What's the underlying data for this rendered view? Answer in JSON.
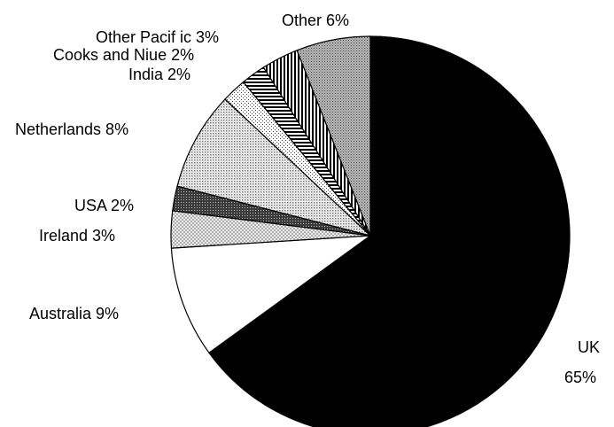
{
  "chart_data": {
    "type": "pie",
    "start": "12 o'clock",
    "direction": "clockwise",
    "slices": [
      {
        "label": "UK",
        "value": 65,
        "display": "65%",
        "fill": "solid-black"
      },
      {
        "label": "Australia",
        "value": 9,
        "display": "Australia 9%",
        "fill": "white"
      },
      {
        "label": "Ireland",
        "value": 3,
        "display": "Ireland 3%",
        "fill": "crosshatch-grey"
      },
      {
        "label": "USA",
        "value": 2,
        "display": "USA 2%",
        "fill": "dark-grid"
      },
      {
        "label": "Netherlands",
        "value": 8,
        "display": "Netherlands 8%",
        "fill": "fine-dots-grey"
      },
      {
        "label": "India",
        "value": 2,
        "display": "India 2%",
        "fill": "sparse-dots"
      },
      {
        "label": "Cooks and Niue",
        "value": 2,
        "display": "Cooks and Niue 2%",
        "fill": "horizontal-stripes"
      },
      {
        "label": "Other Pacific",
        "value": 3,
        "display": "Other Pacif ic 3%",
        "fill": "vertical-stripes"
      },
      {
        "label": "Other",
        "value": 6,
        "display": "Other 6%",
        "fill": "dense-dots-grey"
      }
    ],
    "uk_labels": {
      "name": "UK",
      "pct": "65%"
    }
  }
}
